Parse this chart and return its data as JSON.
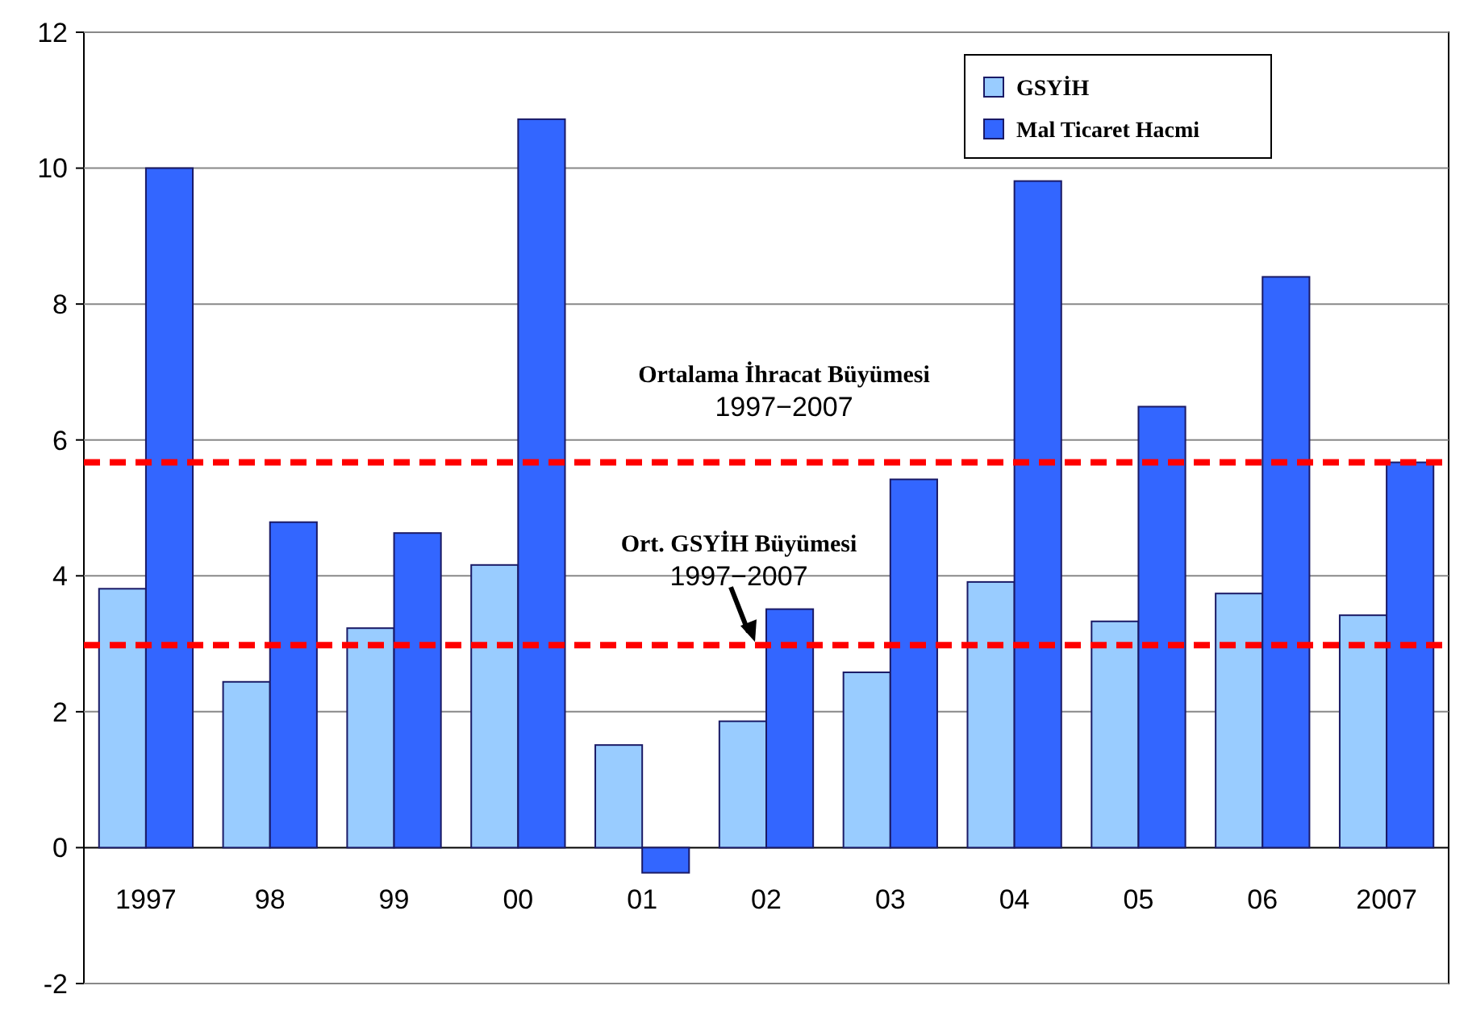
{
  "chart_data": {
    "type": "bar",
    "categories": [
      "1997",
      "98",
      "99",
      "00",
      "01",
      "02",
      "03",
      "04",
      "05",
      "06",
      "2007"
    ],
    "series": [
      {
        "name": "GSYİH",
        "color": "#99ccff",
        "values": [
          3.81,
          2.44,
          3.23,
          4.16,
          1.51,
          1.86,
          2.58,
          3.91,
          3.33,
          3.74,
          3.42
        ]
      },
      {
        "name": "Mal Ticaret Hacmi",
        "color": "#3366ff",
        "values": [
          10.0,
          4.79,
          4.63,
          10.72,
          -0.37,
          3.51,
          5.42,
          9.81,
          6.49,
          8.4,
          5.67
        ]
      }
    ],
    "ylim": [
      -2,
      12
    ],
    "yticks": [
      -2,
      0,
      2,
      4,
      6,
      8,
      10,
      12
    ],
    "grid": "y",
    "legend": "top right",
    "ref_lines": [
      {
        "axis": "y",
        "value": 5.67,
        "label": "Ortalama İhracat Büyümesi 1997−2007",
        "color": "#ff0000",
        "line_style": "dashed"
      },
      {
        "axis": "y",
        "value": 2.98,
        "label": "Ort. GSYİH Büyümesi 1997−2007",
        "color": "#ff0000",
        "line_style": "dashed"
      }
    ]
  }
}
